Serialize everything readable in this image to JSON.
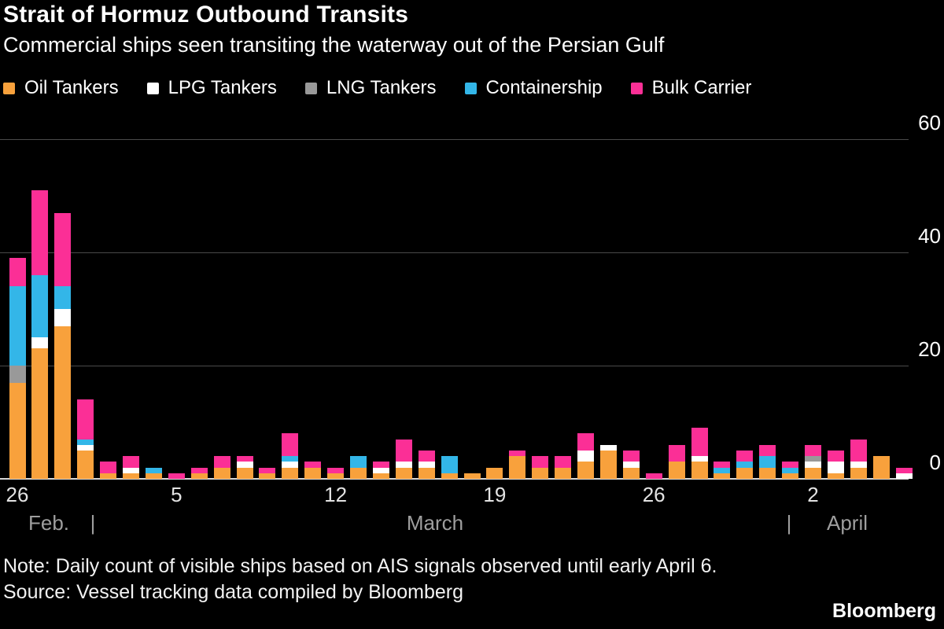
{
  "title": "Strait of Hormuz Outbound Transits",
  "subtitle": "Commercial ships seen transiting the waterway out of the Persian Gulf",
  "legend": [
    {
      "label": "Oil Tankers",
      "color": "#F8A13C"
    },
    {
      "label": "LPG Tankers",
      "color": "#FFFFFF"
    },
    {
      "label": "LNG Tankers",
      "color": "#999999"
    },
    {
      "label": "Containership",
      "color": "#33B6E8"
    },
    {
      "label": "Bulk Carrier",
      "color": "#FB2F96"
    }
  ],
  "note": "Note: Daily count of visible ships based on AIS signals observed until early April 6.",
  "source": "Source: Vessel tracking data compiled by Bloomberg",
  "brand": "Bloomberg",
  "chart_data": {
    "type": "bar",
    "stacked": true,
    "title": "Strait of Hormuz Outbound Transits",
    "ylabel": "",
    "xlabel": "",
    "ylim": [
      0,
      62
    ],
    "yticks": [
      0,
      20,
      40,
      60
    ],
    "grid": "horizontal",
    "legend_position": "top",
    "x": [
      "Feb 26",
      "Feb 27",
      "Feb 28",
      "Mar 1",
      "Mar 2",
      "Mar 3",
      "Mar 4",
      "Mar 5",
      "Mar 6",
      "Mar 7",
      "Mar 8",
      "Mar 9",
      "Mar 10",
      "Mar 11",
      "Mar 12",
      "Mar 13",
      "Mar 14",
      "Mar 15",
      "Mar 16",
      "Mar 17",
      "Mar 18",
      "Mar 19",
      "Mar 20",
      "Mar 21",
      "Mar 22",
      "Mar 23",
      "Mar 24",
      "Mar 25",
      "Mar 26",
      "Mar 27",
      "Mar 28",
      "Mar 29",
      "Mar 30",
      "Mar 31",
      "Apr 1",
      "Apr 2",
      "Apr 3",
      "Apr 4",
      "Apr 5",
      "Apr 6"
    ],
    "series": [
      {
        "name": "Oil Tankers",
        "color": "#F8A13C",
        "values": [
          17,
          23,
          27,
          5,
          1,
          1,
          1,
          0,
          1,
          2,
          2,
          1,
          2,
          2,
          1,
          2,
          1,
          2,
          2,
          1,
          1,
          2,
          4,
          2,
          2,
          3,
          5,
          2,
          0,
          3,
          3,
          1,
          2,
          2,
          1,
          2,
          1,
          2,
          4,
          0
        ]
      },
      {
        "name": "LPG Tankers",
        "color": "#FFFFFF",
        "values": [
          0,
          2,
          3,
          1,
          0,
          1,
          0,
          0,
          0,
          0,
          1,
          0,
          1,
          0,
          0,
          0,
          1,
          1,
          1,
          0,
          0,
          0,
          0,
          0,
          0,
          2,
          1,
          1,
          0,
          0,
          1,
          0,
          0,
          0,
          0,
          1,
          2,
          1,
          0,
          1
        ]
      },
      {
        "name": "LNG Tankers",
        "color": "#999999",
        "values": [
          3,
          0,
          0,
          0,
          0,
          0,
          0,
          0,
          0,
          0,
          0,
          0,
          0,
          0,
          0,
          0,
          0,
          0,
          0,
          0,
          0,
          0,
          0,
          0,
          0,
          0,
          0,
          0,
          0,
          0,
          0,
          0,
          0,
          0,
          0,
          1,
          0,
          0,
          0,
          0
        ]
      },
      {
        "name": "Containership",
        "color": "#33B6E8",
        "values": [
          14,
          11,
          4,
          1,
          0,
          0,
          1,
          0,
          0,
          0,
          0,
          0,
          1,
          0,
          0,
          2,
          0,
          0,
          0,
          3,
          0,
          0,
          0,
          0,
          0,
          0,
          0,
          0,
          0,
          0,
          0,
          1,
          1,
          2,
          1,
          0,
          0,
          0,
          0,
          0
        ]
      },
      {
        "name": "Bulk Carrier",
        "color": "#FB2F96",
        "values": [
          5,
          15,
          13,
          7,
          2,
          2,
          0,
          1,
          1,
          2,
          1,
          1,
          4,
          1,
          1,
          0,
          1,
          4,
          2,
          0,
          0,
          0,
          1,
          2,
          2,
          3,
          0,
          2,
          1,
          3,
          5,
          1,
          2,
          2,
          1,
          2,
          2,
          4,
          0,
          1
        ]
      }
    ],
    "xticks": [
      {
        "index": 0,
        "label": "26"
      },
      {
        "index": 7,
        "label": "5"
      },
      {
        "index": 14,
        "label": "12"
      },
      {
        "index": 21,
        "label": "19"
      },
      {
        "index": 28,
        "label": "26"
      },
      {
        "index": 35,
        "label": "2"
      }
    ],
    "months": [
      {
        "label": "Feb."
      },
      {
        "label": "March"
      },
      {
        "label": "April"
      }
    ],
    "month_separator": "|"
  }
}
